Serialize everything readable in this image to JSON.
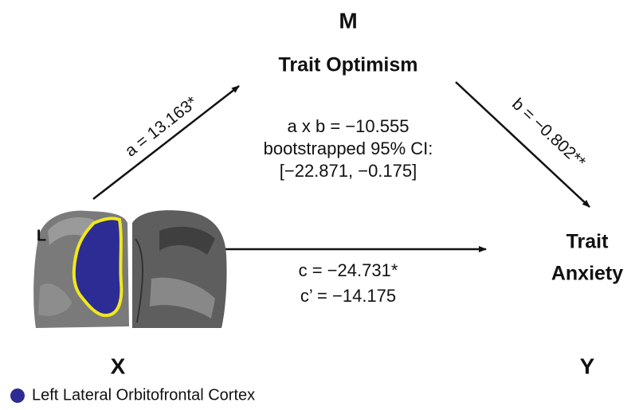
{
  "nodes": {
    "m": {
      "letter": "M",
      "label": "Trait Optimism"
    },
    "x": {
      "letter": "X",
      "side": "L"
    },
    "y": {
      "letter": "Y",
      "label_lines": [
        "Trait",
        "Anxiety"
      ]
    }
  },
  "paths": {
    "a": "a = 13.163*",
    "b": "b = −0.802**",
    "indirect": [
      "a x b = −10.555",
      "bootstrapped 95% CI:",
      "[−22.871, −0.175]"
    ],
    "direct": [
      "c = −24.731*",
      "c’ = −14.175"
    ]
  },
  "legend": {
    "label": "Left Lateral Orbitofrontal Cortex",
    "color": "#2c2c94"
  }
}
